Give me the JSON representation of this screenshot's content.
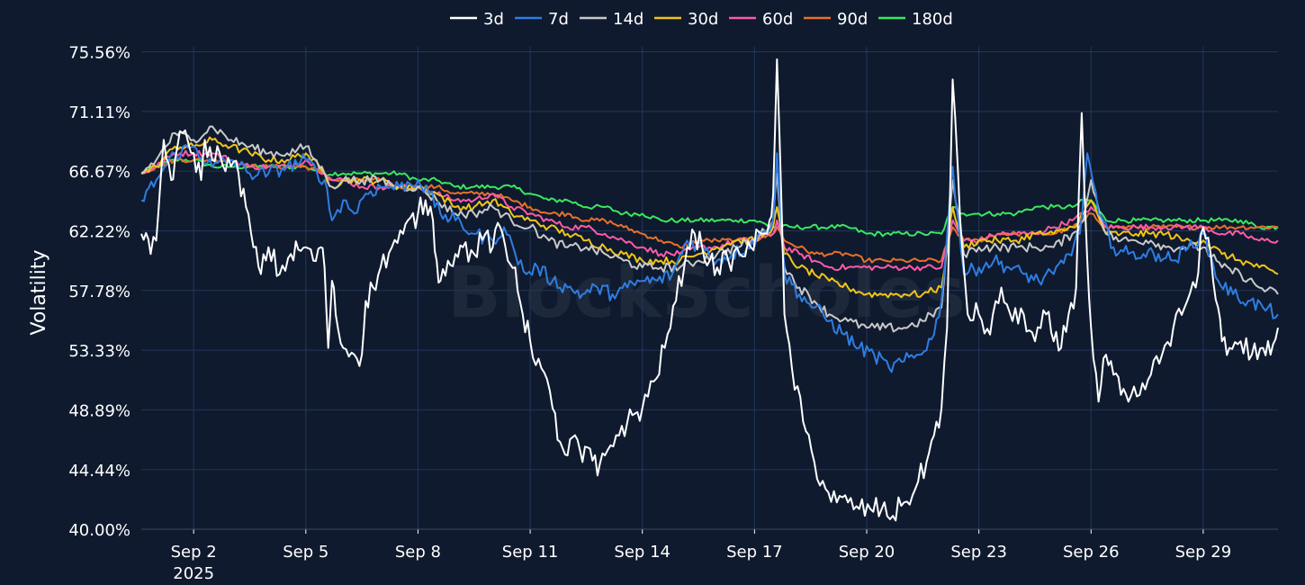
{
  "chart_data": {
    "type": "line",
    "title": "",
    "xlabel": "",
    "ylabel": "Volatility",
    "watermark": "BlockScholes",
    "ylim": [
      40.0,
      76.4
    ],
    "xlim": [
      0.6,
      31.0
    ],
    "y_ticks": [
      {
        "value": 40.0,
        "label": "40.00%"
      },
      {
        "value": 44.44,
        "label": "44.44%"
      },
      {
        "value": 48.89,
        "label": "48.89%"
      },
      {
        "value": 53.33,
        "label": "53.33%"
      },
      {
        "value": 57.78,
        "label": "57.78%"
      },
      {
        "value": 62.22,
        "label": "62.22%"
      },
      {
        "value": 66.67,
        "label": "66.67%"
      },
      {
        "value": 71.11,
        "label": "71.11%"
      },
      {
        "value": 75.56,
        "label": "75.56%"
      }
    ],
    "x_ticks": [
      {
        "value": 2,
        "label": "Sep 2",
        "sublabel": "2025"
      },
      {
        "value": 5,
        "label": "Sep 5"
      },
      {
        "value": 8,
        "label": "Sep 8"
      },
      {
        "value": 11,
        "label": "Sep 11"
      },
      {
        "value": 14,
        "label": "Sep 14"
      },
      {
        "value": 17,
        "label": "Sep 17"
      },
      {
        "value": 20,
        "label": "Sep 20"
      },
      {
        "value": 23,
        "label": "Sep 23"
      },
      {
        "value": 26,
        "label": "Sep 26"
      },
      {
        "value": 29,
        "label": "Sep 29"
      }
    ],
    "legend_position": "top-center",
    "series": [
      {
        "name": "3d",
        "color": "#ffffff",
        "x": [
          0.6,
          0.85,
          1.0,
          1.2,
          1.4,
          1.5,
          1.7,
          2.0,
          2.2,
          2.3,
          2.5,
          2.7,
          3.0,
          3.2,
          3.4,
          3.6,
          3.8,
          4.0,
          4.3,
          4.6,
          5.0,
          5.2,
          5.4,
          5.5,
          5.6,
          5.7,
          5.8,
          6.0,
          6.3,
          6.5,
          6.6,
          6.8,
          7.0,
          7.3,
          7.6,
          8.0,
          8.2,
          8.4,
          8.5,
          8.6,
          8.8,
          9.0,
          9.2,
          9.5,
          9.8,
          10.0,
          10.2,
          10.4,
          10.6,
          10.8,
          11.0,
          11.3,
          11.6,
          11.8,
          12.0,
          12.2,
          12.4,
          12.6,
          12.8,
          13.0,
          13.3,
          13.6,
          14.0,
          14.3,
          14.6,
          14.9,
          15.2,
          15.4,
          15.6,
          15.8,
          16.0,
          16.3,
          16.6,
          16.9,
          17.2,
          17.4,
          17.5,
          17.6,
          17.8,
          18.0,
          18.3,
          18.6,
          18.9,
          19.2,
          19.5,
          19.8,
          20.1,
          20.4,
          20.7,
          21.0,
          21.3,
          21.6,
          21.8,
          22.0,
          22.15,
          22.3,
          22.5,
          22.7,
          23.0,
          23.3,
          23.6,
          23.9,
          24.2,
          24.5,
          24.8,
          25.0,
          25.2,
          25.4,
          25.6,
          25.75,
          25.9,
          26.0,
          26.2,
          26.4,
          26.6,
          26.8,
          27.0,
          27.3,
          27.6,
          27.9,
          28.2,
          28.5,
          28.8,
          29.0,
          29.2,
          29.4,
          29.5,
          29.7,
          30.0,
          30.3,
          30.6,
          30.8,
          31.0
        ],
        "values": [
          62.0,
          60.5,
          61.5,
          69.0,
          66.0,
          67.5,
          69.5,
          68.0,
          66.0,
          69.0,
          67.5,
          68.0,
          67.0,
          66.5,
          64.0,
          61.0,
          59.0,
          61.0,
          59.0,
          60.5,
          61.0,
          60.0,
          61.0,
          59.5,
          53.5,
          58.5,
          56.0,
          53.5,
          53.0,
          53.0,
          57.0,
          58.0,
          59.5,
          61.0,
          62.0,
          63.5,
          64.5,
          63.0,
          60.0,
          58.5,
          60.0,
          60.5,
          61.0,
          60.5,
          62.0,
          61.0,
          62.5,
          60.0,
          59.5,
          56.0,
          54.0,
          52.0,
          49.0,
          46.5,
          45.5,
          47.0,
          45.0,
          46.0,
          44.0,
          45.5,
          47.0,
          48.0,
          49.0,
          51.0,
          53.5,
          57.0,
          61.0,
          62.0,
          61.0,
          60.0,
          59.5,
          60.0,
          60.5,
          61.0,
          62.0,
          63.0,
          65.0,
          75.0,
          56.0,
          52.0,
          48.0,
          45.0,
          43.0,
          42.0,
          42.0,
          41.5,
          41.5,
          41.5,
          41.0,
          42.0,
          43.0,
          45.0,
          47.0,
          49.0,
          55.0,
          73.5,
          63.0,
          56.0,
          56.0,
          54.5,
          58.0,
          55.5,
          56.0,
          54.0,
          56.0,
          54.0,
          53.5,
          56.0,
          58.0,
          71.0,
          60.0,
          55.0,
          49.5,
          53.0,
          51.5,
          50.0,
          49.5,
          50.0,
          51.5,
          53.0,
          55.0,
          56.5,
          58.0,
          62.5,
          60.5,
          56.5,
          54.0,
          53.5,
          54.0,
          53.0,
          53.5,
          53.0,
          55.0
        ]
      },
      {
        "name": "7d",
        "color": "#2f7de1",
        "x": [
          0.6,
          1.0,
          1.5,
          2.0,
          2.5,
          3.0,
          3.5,
          4.0,
          4.5,
          5.0,
          5.5,
          5.7,
          6.0,
          6.3,
          6.6,
          7.0,
          7.5,
          8.0,
          8.3,
          8.6,
          9.0,
          9.5,
          10.0,
          10.3,
          10.6,
          10.9,
          11.2,
          11.6,
          12.0,
          12.4,
          12.8,
          13.2,
          13.6,
          14.0,
          14.4,
          14.8,
          15.2,
          15.6,
          16.0,
          16.4,
          16.8,
          17.2,
          17.5,
          17.6,
          17.8,
          18.2,
          18.6,
          19.0,
          19.4,
          19.8,
          20.2,
          20.6,
          21.0,
          21.4,
          21.8,
          22.0,
          22.3,
          22.6,
          23.0,
          23.4,
          23.8,
          24.2,
          24.6,
          25.0,
          25.4,
          25.7,
          25.9,
          26.2,
          26.6,
          27.0,
          27.4,
          27.8,
          28.2,
          28.6,
          29.0,
          29.4,
          29.8,
          30.2,
          30.6,
          31.0
        ],
        "values": [
          64.5,
          66.0,
          68.0,
          68.5,
          67.0,
          67.5,
          66.5,
          66.5,
          67.0,
          67.5,
          66.0,
          63.0,
          64.5,
          63.5,
          65.0,
          65.5,
          65.5,
          66.0,
          65.0,
          63.5,
          63.0,
          62.0,
          61.5,
          62.5,
          60.5,
          59.0,
          59.5,
          58.5,
          58.0,
          57.5,
          58.0,
          57.5,
          58.0,
          58.5,
          58.5,
          59.0,
          61.5,
          61.0,
          60.0,
          60.5,
          61.0,
          62.0,
          63.0,
          68.0,
          59.0,
          57.5,
          56.5,
          55.5,
          54.5,
          53.5,
          53.0,
          52.0,
          52.5,
          53.0,
          54.5,
          57.0,
          67.0,
          59.0,
          59.5,
          60.0,
          59.5,
          59.0,
          58.5,
          59.0,
          60.5,
          62.0,
          68.0,
          63.5,
          61.0,
          60.5,
          60.5,
          60.5,
          60.0,
          61.0,
          62.0,
          58.5,
          57.5,
          57.0,
          56.5,
          56.0
        ]
      },
      {
        "name": "14d",
        "color": "#c9c9c9",
        "x": [
          0.6,
          1.0,
          1.5,
          2.0,
          2.5,
          3.0,
          3.5,
          4.0,
          4.5,
          5.0,
          5.5,
          5.7,
          6.0,
          6.5,
          7.0,
          7.5,
          8.0,
          8.5,
          9.0,
          9.5,
          10.0,
          10.5,
          11.0,
          11.5,
          12.0,
          12.5,
          13.0,
          13.5,
          14.0,
          14.5,
          15.0,
          15.5,
          16.0,
          16.5,
          17.0,
          17.5,
          17.6,
          17.8,
          18.2,
          18.6,
          19.0,
          19.5,
          20.0,
          20.5,
          21.0,
          21.5,
          22.0,
          22.3,
          22.6,
          23.0,
          23.5,
          24.0,
          24.5,
          25.0,
          25.5,
          25.8,
          26.0,
          26.4,
          26.8,
          27.2,
          27.6,
          28.0,
          28.5,
          29.0,
          29.5,
          30.0,
          30.5,
          31.0
        ],
        "values": [
          66.5,
          67.5,
          69.5,
          69.0,
          70.0,
          69.0,
          68.5,
          68.0,
          68.0,
          68.5,
          66.5,
          65.5,
          66.0,
          66.0,
          66.0,
          65.5,
          65.5,
          64.5,
          63.5,
          63.5,
          64.0,
          63.0,
          62.5,
          61.5,
          61.0,
          61.0,
          60.5,
          60.0,
          59.5,
          59.5,
          59.5,
          60.0,
          60.5,
          61.0,
          61.5,
          63.0,
          66.5,
          59.5,
          58.0,
          57.0,
          56.0,
          55.5,
          55.0,
          55.0,
          55.0,
          55.5,
          56.5,
          66.0,
          60.5,
          61.0,
          61.0,
          61.0,
          61.0,
          61.0,
          62.0,
          63.0,
          66.0,
          62.0,
          61.5,
          61.5,
          61.5,
          61.0,
          61.0,
          61.0,
          59.5,
          59.0,
          58.0,
          57.5
        ]
      },
      {
        "name": "30d",
        "color": "#f0c419",
        "x": [
          0.6,
          1.0,
          1.5,
          2.0,
          2.5,
          3.0,
          3.5,
          4.0,
          4.5,
          5.0,
          5.5,
          5.7,
          6.0,
          6.5,
          7.0,
          7.5,
          8.0,
          8.5,
          9.0,
          9.5,
          10.0,
          10.5,
          11.0,
          11.5,
          12.0,
          12.5,
          13.0,
          13.5,
          14.0,
          14.5,
          15.0,
          15.5,
          16.0,
          16.5,
          17.0,
          17.5,
          17.6,
          17.8,
          18.2,
          18.6,
          19.0,
          19.5,
          20.0,
          20.5,
          21.0,
          21.5,
          22.0,
          22.3,
          22.6,
          23.0,
          23.5,
          24.0,
          24.5,
          25.0,
          25.5,
          25.8,
          26.0,
          26.4,
          26.8,
          27.2,
          27.6,
          28.0,
          28.5,
          29.0,
          29.5,
          30.0,
          30.5,
          31.0
        ],
        "values": [
          66.5,
          67.0,
          68.5,
          68.5,
          69.0,
          68.5,
          68.0,
          67.5,
          67.5,
          68.0,
          66.5,
          65.5,
          66.0,
          66.0,
          66.0,
          65.5,
          65.5,
          65.0,
          64.0,
          64.0,
          64.5,
          63.5,
          63.0,
          62.5,
          62.0,
          61.5,
          61.0,
          60.5,
          60.0,
          60.0,
          60.0,
          60.5,
          61.0,
          61.5,
          61.5,
          62.5,
          64.0,
          60.5,
          59.5,
          59.0,
          58.5,
          58.0,
          57.5,
          57.5,
          57.5,
          57.5,
          58.0,
          64.0,
          61.0,
          61.5,
          61.5,
          61.5,
          62.0,
          62.0,
          62.5,
          63.5,
          64.5,
          62.0,
          62.0,
          62.0,
          62.0,
          62.0,
          61.5,
          61.5,
          60.5,
          60.0,
          59.5,
          59.0
        ]
      },
      {
        "name": "60d",
        "color": "#ff5aa8",
        "x": [
          0.6,
          1.0,
          1.5,
          2.0,
          2.5,
          3.0,
          3.5,
          4.0,
          4.5,
          5.0,
          5.5,
          5.7,
          6.0,
          6.5,
          7.0,
          7.5,
          8.0,
          8.5,
          9.0,
          9.5,
          10.0,
          10.5,
          11.0,
          11.5,
          12.0,
          12.5,
          13.0,
          13.5,
          14.0,
          14.5,
          15.0,
          15.5,
          16.0,
          16.5,
          17.0,
          17.5,
          17.6,
          17.8,
          18.2,
          18.6,
          19.0,
          19.5,
          20.0,
          20.5,
          21.0,
          21.5,
          22.0,
          22.3,
          22.6,
          23.0,
          23.5,
          24.0,
          24.5,
          25.0,
          25.5,
          25.8,
          26.0,
          26.4,
          26.8,
          27.2,
          27.6,
          28.0,
          28.5,
          29.0,
          29.5,
          30.0,
          30.5,
          31.0
        ],
        "values": [
          66.5,
          67.0,
          68.0,
          68.0,
          68.0,
          67.5,
          67.0,
          67.0,
          67.0,
          67.5,
          66.5,
          66.0,
          66.0,
          65.5,
          65.5,
          65.5,
          65.5,
          65.0,
          64.5,
          64.5,
          65.0,
          64.0,
          63.5,
          63.0,
          62.5,
          62.5,
          62.0,
          61.5,
          61.0,
          60.5,
          60.5,
          61.0,
          61.0,
          61.5,
          61.5,
          62.0,
          63.0,
          61.0,
          60.5,
          60.0,
          59.5,
          59.5,
          59.5,
          59.5,
          59.5,
          59.5,
          59.5,
          63.0,
          61.5,
          61.5,
          62.0,
          62.0,
          62.0,
          62.5,
          63.0,
          63.5,
          64.0,
          62.5,
          62.5,
          62.5,
          62.5,
          62.5,
          62.5,
          62.5,
          62.0,
          62.0,
          61.5,
          61.5
        ]
      },
      {
        "name": "90d",
        "color": "#e8702a",
        "x": [
          0.6,
          1.0,
          1.5,
          2.0,
          2.5,
          3.0,
          3.5,
          4.0,
          4.5,
          5.0,
          5.5,
          5.7,
          6.0,
          6.5,
          7.0,
          7.5,
          8.0,
          8.5,
          9.0,
          9.5,
          10.0,
          10.5,
          11.0,
          11.5,
          12.0,
          12.5,
          13.0,
          13.5,
          14.0,
          14.5,
          15.0,
          15.5,
          16.0,
          16.5,
          17.0,
          17.5,
          17.6,
          17.8,
          18.2,
          18.6,
          19.0,
          19.5,
          20.0,
          20.5,
          21.0,
          21.5,
          22.0,
          22.3,
          22.6,
          23.0,
          23.5,
          24.0,
          24.5,
          25.0,
          25.5,
          25.8,
          26.0,
          26.4,
          26.8,
          27.2,
          27.6,
          28.0,
          28.5,
          29.0,
          29.5,
          30.0,
          30.5,
          31.0
        ],
        "values": [
          66.5,
          67.0,
          67.5,
          67.5,
          67.5,
          67.5,
          67.0,
          67.0,
          67.0,
          67.0,
          66.5,
          66.0,
          66.0,
          66.0,
          66.0,
          65.5,
          65.5,
          65.5,
          65.0,
          65.0,
          65.0,
          64.5,
          64.0,
          63.5,
          63.5,
          63.0,
          63.0,
          62.5,
          62.0,
          61.5,
          61.0,
          61.5,
          61.5,
          61.5,
          61.5,
          62.0,
          62.5,
          61.5,
          61.0,
          60.5,
          60.5,
          60.5,
          60.0,
          60.0,
          60.0,
          60.0,
          60.0,
          62.5,
          61.5,
          61.5,
          62.0,
          62.0,
          62.0,
          62.0,
          62.5,
          63.0,
          63.5,
          62.5,
          62.5,
          62.5,
          62.5,
          62.5,
          62.5,
          62.5,
          62.5,
          62.5,
          62.5,
          62.5
        ]
      },
      {
        "name": "180d",
        "color": "#39e75f",
        "x": [
          0.6,
          1.0,
          1.5,
          2.0,
          2.5,
          3.0,
          3.5,
          4.0,
          4.5,
          5.0,
          5.5,
          6.0,
          6.5,
          7.0,
          7.5,
          8.0,
          8.5,
          9.0,
          9.5,
          10.0,
          10.5,
          11.0,
          11.5,
          12.0,
          12.5,
          13.0,
          13.5,
          14.0,
          14.5,
          15.0,
          15.5,
          16.0,
          16.5,
          17.0,
          17.5,
          18.0,
          18.5,
          19.0,
          19.5,
          20.0,
          20.5,
          21.0,
          21.5,
          22.0,
          22.3,
          22.6,
          23.0,
          23.5,
          24.0,
          24.5,
          25.0,
          25.5,
          25.8,
          26.0,
          26.4,
          26.8,
          27.2,
          27.6,
          28.0,
          28.5,
          29.0,
          29.5,
          30.0,
          30.5,
          31.0
        ],
        "values": [
          66.5,
          67.0,
          67.5,
          67.5,
          67.0,
          67.0,
          67.0,
          67.0,
          67.0,
          67.0,
          66.5,
          66.5,
          66.5,
          66.5,
          66.5,
          66.0,
          66.0,
          65.5,
          65.5,
          65.5,
          65.5,
          65.0,
          64.5,
          64.5,
          64.0,
          64.0,
          63.5,
          63.5,
          63.0,
          63.0,
          63.0,
          63.0,
          63.0,
          63.0,
          62.5,
          62.5,
          62.5,
          62.5,
          62.5,
          62.0,
          62.0,
          62.0,
          62.0,
          62.0,
          64.0,
          63.5,
          63.5,
          63.5,
          63.5,
          64.0,
          64.0,
          64.0,
          64.5,
          64.5,
          63.0,
          63.0,
          63.0,
          63.0,
          63.0,
          63.0,
          63.0,
          63.0,
          63.0,
          62.5,
          62.5
        ]
      }
    ]
  }
}
